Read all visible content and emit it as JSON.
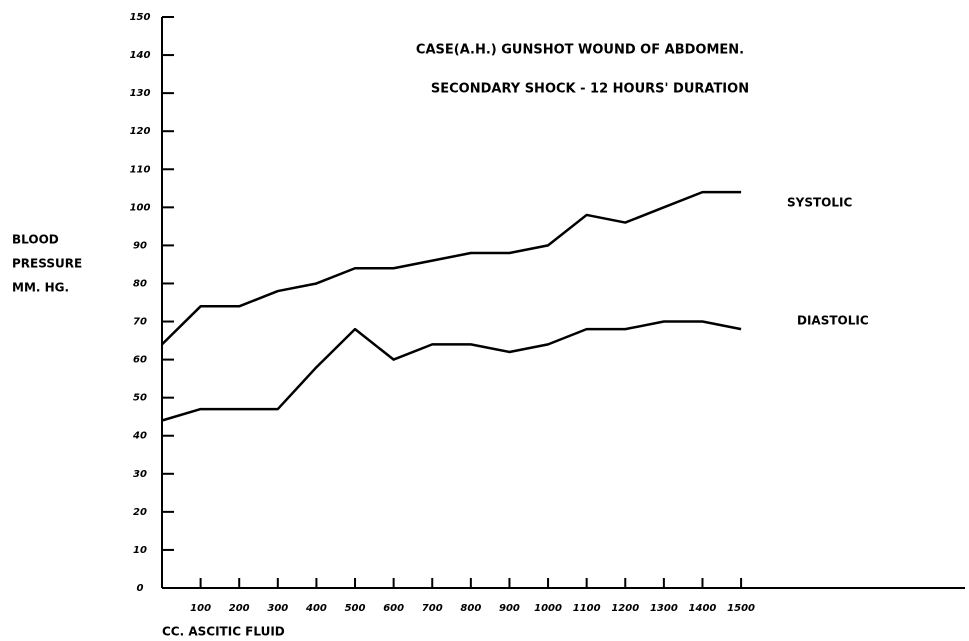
{
  "chart_data": {
    "type": "line",
    "title": [
      "CASE(A.H.) GUNSHOT WOUND OF ABDOMEN.",
      "SECONDARY SHOCK - 12 HOURS' DURATION"
    ],
    "y_label": [
      "BLOOD",
      "PRESSURE",
      "MM. HG."
    ],
    "x_label": "CC. ASCITIC FLUID",
    "x": [
      0,
      100,
      200,
      300,
      400,
      500,
      600,
      700,
      800,
      900,
      1000,
      1100,
      1200,
      1300,
      1400,
      1500
    ],
    "series": [
      {
        "name": "SYSTOLIC",
        "color": "#000000",
        "values": [
          64,
          74,
          74,
          78,
          80,
          84,
          84,
          86,
          88,
          88,
          90,
          98,
          96,
          100,
          104,
          104
        ]
      },
      {
        "name": "DIASTOLIC",
        "color": "#000000",
        "values": [
          44,
          47,
          47,
          47,
          58,
          68,
          60,
          64,
          64,
          62,
          64,
          68,
          68,
          70,
          70,
          68
        ]
      }
    ],
    "xlim": [
      0,
      2080
    ],
    "xticks": [
      100,
      200,
      300,
      400,
      500,
      600,
      700,
      800,
      900,
      1000,
      1100,
      1200,
      1300,
      1400,
      1500
    ],
    "ylim": [
      0,
      150
    ],
    "yticks": [
      0,
      10,
      20,
      30,
      40,
      50,
      60,
      70,
      80,
      90,
      100,
      110,
      120,
      130,
      140,
      150
    ],
    "grid": false
  }
}
